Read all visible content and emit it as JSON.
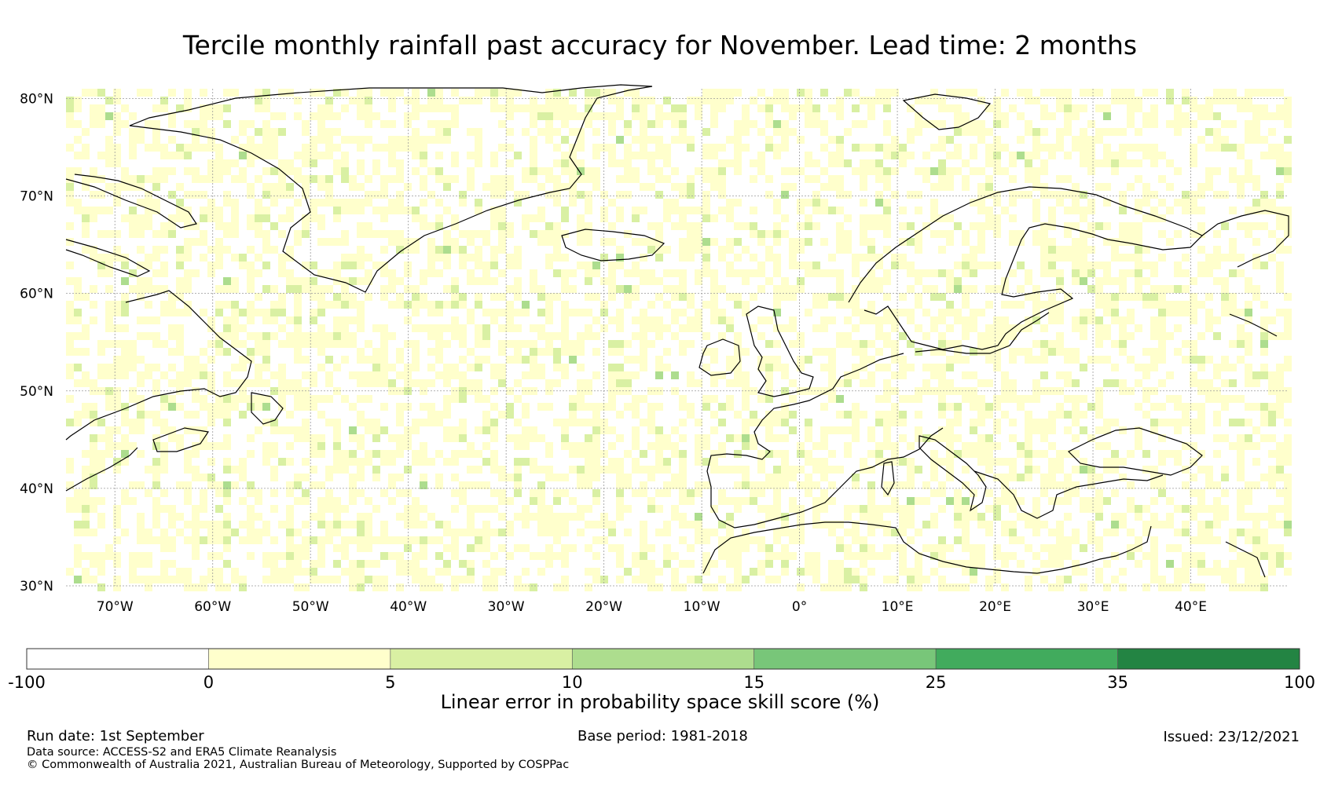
{
  "title": "Tercile monthly rainfall past accuracy for November. Lead time: 2 months",
  "lat_labels": [
    "80°N",
    "70°N",
    "60°N",
    "50°N",
    "40°N",
    "30°N"
  ],
  "lon_labels": [
    "70°W",
    "60°W",
    "50°W",
    "40°W",
    "30°W",
    "20°W",
    "10°W",
    "0°",
    "10°E",
    "20°E",
    "30°E",
    "40°E"
  ],
  "colorbar": {
    "bounds": [
      "-100",
      "0",
      "5",
      "10",
      "15",
      "25",
      "35",
      "100"
    ],
    "colors": [
      "#ffffff",
      "#ffffcc",
      "#d9f0a3",
      "#addd8e",
      "#78c679",
      "#41ab5d",
      "#238443"
    ],
    "label": "Linear error in probability space skill score (%)"
  },
  "footer": {
    "run_date": "Run date: 1st September",
    "base_period": "Base period: 1981-2018",
    "issued": "Issued: 23/12/2021",
    "data_source": "Data source: ACCESS-S2 and ERA5 Climate Reanalysis",
    "copyright": "© Commonwealth of Australia 2021, Australian Bureau of Meteorology, Supported by COSPPac"
  },
  "map": {
    "extent": {
      "lon_min": -75,
      "lon_max": 50,
      "lat_min": 30,
      "lat_max": 81
    },
    "gridline_color": "#999999",
    "coastline_color": "#000000"
  }
}
